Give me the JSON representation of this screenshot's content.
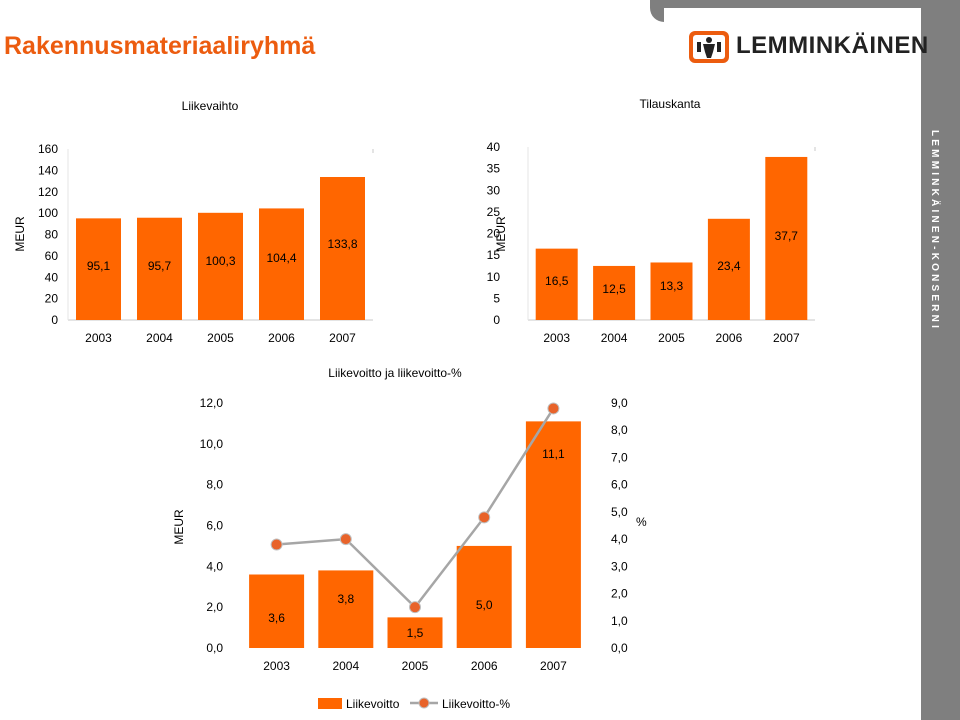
{
  "page": {
    "title": "Rakennusmateriaaliryhmä",
    "brand": "LEMMINKÄINEN",
    "side_text": "LEMMINKÄINEN-KONSERNI",
    "colors": {
      "accent": "#ec5c0f",
      "bar": "#ff6600",
      "line": "#a6a6a6",
      "marker": "#e8632a",
      "band": "#7f7f7f"
    }
  },
  "chart_data": [
    {
      "type": "bar",
      "title": "Liikevaihto",
      "ylabel": "MEUR",
      "categories": [
        "2003",
        "2004",
        "2005",
        "2006",
        "2007"
      ],
      "values": [
        95.1,
        95.7,
        100.3,
        104.4,
        133.8
      ],
      "data_labels": [
        "95,1",
        "95,7",
        "100,3",
        "104,4",
        "133,8"
      ],
      "ylim": [
        0,
        160
      ],
      "yticks": [
        "0",
        "20",
        "40",
        "60",
        "80",
        "100",
        "120",
        "140",
        "160"
      ],
      "grid": false
    },
    {
      "type": "bar",
      "title": "Tilauskanta",
      "ylabel": "MEUR",
      "categories": [
        "2003",
        "2004",
        "2005",
        "2006",
        "2007"
      ],
      "values": [
        16.5,
        12.5,
        13.3,
        23.4,
        37.7
      ],
      "data_labels": [
        "16,5",
        "12,5",
        "13,3",
        "23,4",
        "37,7"
      ],
      "ylim": [
        0,
        40
      ],
      "yticks": [
        "0",
        "5",
        "10",
        "15",
        "20",
        "25",
        "30",
        "35",
        "40"
      ],
      "grid": false
    },
    {
      "type": "bar",
      "title": "Liikevoitto ja liikevoitto-%",
      "ylabel": "MEUR",
      "y2label": "%",
      "categories": [
        "2003",
        "2004",
        "2005",
        "2006",
        "2007"
      ],
      "ylim": [
        0,
        12
      ],
      "y2lim": [
        0,
        9
      ],
      "yticks": [
        "0,0",
        "2,0",
        "4,0",
        "6,0",
        "8,0",
        "10,0",
        "12,0"
      ],
      "y2ticks": [
        "0,0",
        "1,0",
        "2,0",
        "3,0",
        "4,0",
        "5,0",
        "6,0",
        "7,0",
        "8,0",
        "9,0"
      ],
      "series": [
        {
          "name": "Liikevoitto",
          "type": "bar",
          "values": [
            3.6,
            3.8,
            1.5,
            5.0,
            11.1
          ],
          "data_labels": [
            "3,6",
            "3,8",
            "1,5",
            "5,0",
            "11,1"
          ]
        },
        {
          "name": "Liikevoitto-%",
          "type": "line",
          "axis": "y2",
          "values": [
            3.8,
            4.0,
            1.5,
            4.8,
            8.8
          ]
        }
      ],
      "legend": "bottom",
      "grid": false
    }
  ]
}
